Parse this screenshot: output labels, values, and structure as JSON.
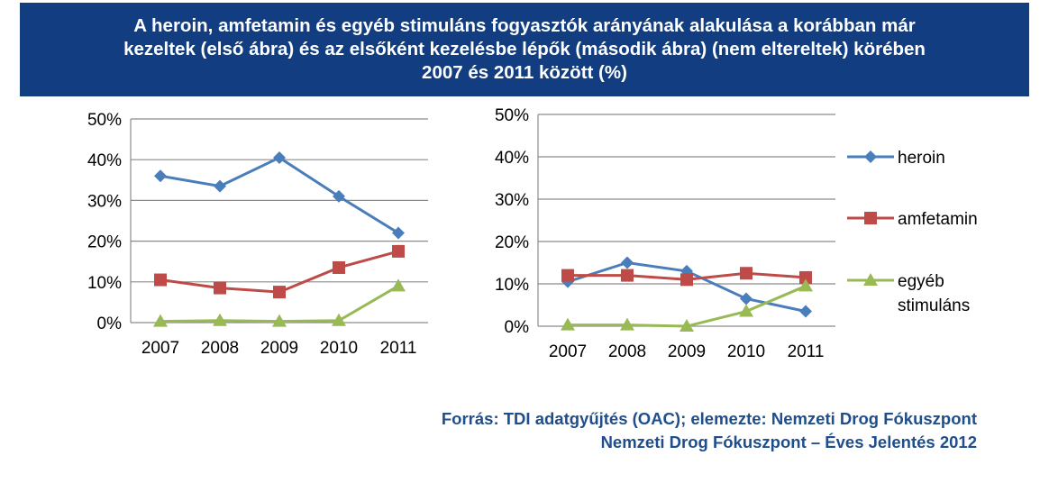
{
  "header": {
    "title_lines": [
      "A heroin, amfetamin és egyéb stimuláns fogyasztók arányának alakulása a korábban már",
      "kezeltek (első ábra) és az elsőként kezelésbe lépők (második ábra) (nem eltereltek) körében",
      "2007 és 2011 között (%)"
    ]
  },
  "legend": {
    "items": [
      {
        "label": "heroin",
        "color": "#4a7ebb",
        "marker": "diamond"
      },
      {
        "label": "amfetamin",
        "color": "#be4b48",
        "marker": "square"
      },
      {
        "label_lines": [
          "egyéb",
          "stimuláns"
        ],
        "color": "#98b954",
        "marker": "triangle"
      }
    ]
  },
  "chart_data": [
    {
      "type": "line",
      "title": "",
      "xlabel": "",
      "ylabel": "",
      "categories": [
        "2007",
        "2008",
        "2009",
        "2010",
        "2011"
      ],
      "yticks": [
        "0%",
        "10%",
        "20%",
        "30%",
        "40%",
        "50%"
      ],
      "ylim": [
        0,
        50
      ],
      "grid": true,
      "series": [
        {
          "name": "heroin",
          "values": [
            36,
            33.5,
            40.5,
            31,
            22
          ],
          "color": "#4a7ebb",
          "marker": "diamond"
        },
        {
          "name": "amfetamin",
          "values": [
            10.5,
            8.5,
            7.5,
            13.5,
            17.5
          ],
          "color": "#be4b48",
          "marker": "square"
        },
        {
          "name": "egyéb stimuláns",
          "values": [
            0.3,
            0.5,
            0.3,
            0.5,
            9
          ],
          "color": "#98b954",
          "marker": "triangle"
        }
      ]
    },
    {
      "type": "line",
      "title": "",
      "xlabel": "",
      "ylabel": "",
      "categories": [
        "2007",
        "2008",
        "2009",
        "2010",
        "2011"
      ],
      "yticks": [
        "0%",
        "10%",
        "20%",
        "30%",
        "40%",
        "50%"
      ],
      "ylim": [
        0,
        50
      ],
      "grid": true,
      "legend": "right",
      "series": [
        {
          "name": "heroin",
          "values": [
            10.5,
            15,
            13,
            6.5,
            3.5
          ],
          "color": "#4a7ebb",
          "marker": "diamond"
        },
        {
          "name": "amfetamin",
          "values": [
            12,
            12,
            11,
            12.5,
            11.5
          ],
          "color": "#be4b48",
          "marker": "square"
        },
        {
          "name": "egyéb stimuláns",
          "values": [
            0.3,
            0.3,
            0,
            3.5,
            9.5
          ],
          "color": "#98b954",
          "marker": "triangle"
        }
      ]
    }
  ],
  "source": {
    "lines": [
      "Forrás: TDI adatgyűjtés (OAC); elemezte: Nemzeti Drog Fókuszpont",
      "Nemzeti Drog Fókuszpont – Éves Jelentés 2012"
    ]
  }
}
